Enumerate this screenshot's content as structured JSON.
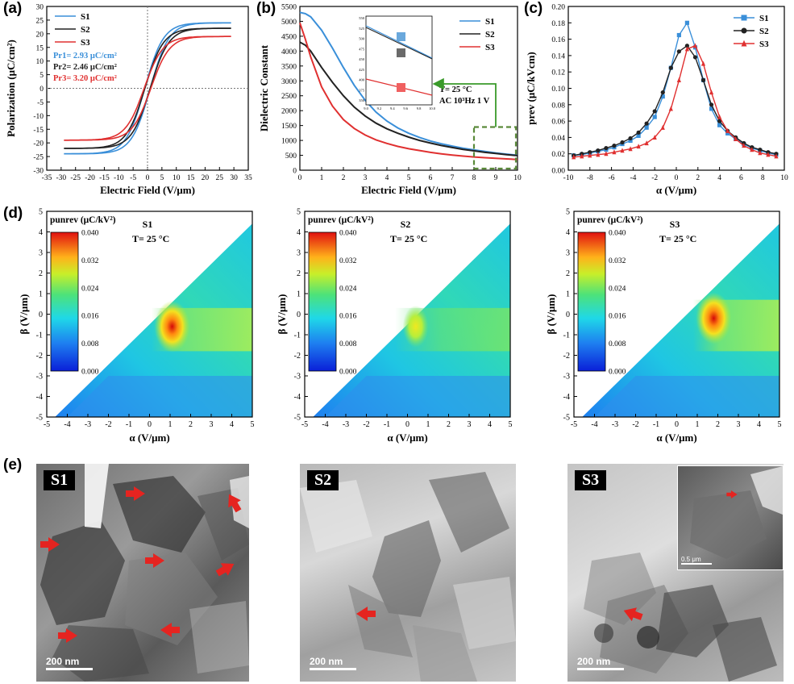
{
  "panel_labels": {
    "a": "(a)",
    "b": "(b)",
    "c": "(c)",
    "d": "(d)",
    "e": "(e)"
  },
  "colors": {
    "S1": "#3a8fd9",
    "S2": "#222222",
    "S3": "#e03030",
    "arrow": "#e52420",
    "inset_arrow": "#3a9a2a"
  },
  "chart_data": [
    {
      "id": "a",
      "type": "line",
      "title": "",
      "xlabel": "Electric Field (V/μm)",
      "ylabel": "Polarization (μC/cm²)",
      "xlim": [
        -35,
        35
      ],
      "ylim": [
        -30,
        30
      ],
      "xticks": [
        -35,
        -30,
        -25,
        -20,
        -15,
        -10,
        -5,
        0,
        5,
        10,
        15,
        20,
        25,
        30,
        35
      ],
      "yticks": [
        -30,
        -25,
        -20,
        -15,
        -10,
        -5,
        0,
        5,
        10,
        15,
        20,
        25,
        30
      ],
      "legend": [
        "S1",
        "S2",
        "S3"
      ],
      "annotations": [
        "Pr1= 2.93 μC/cm²",
        "Pr2= 2.46 μC/cm²",
        "Pr3= 3.20 μC/cm²"
      ],
      "series": [
        {
          "name": "S1",
          "Pmax": 24,
          "Pr": 2.93,
          "Emax": 29
        },
        {
          "name": "S2",
          "Pmax": 22,
          "Pr": 2.46,
          "Emax": 29
        },
        {
          "name": "S3",
          "Pmax": 19,
          "Pr": 3.2,
          "Emax": 29
        }
      ]
    },
    {
      "id": "b",
      "type": "line",
      "title": "",
      "xlabel": "Electric Field (V/μm)",
      "ylabel": "Dielectric Constant",
      "xlim": [
        0,
        10
      ],
      "ylim": [
        0,
        5500
      ],
      "xticks": [
        0,
        1,
        2,
        3,
        4,
        5,
        6,
        7,
        8,
        9,
        10
      ],
      "yticks": [
        0,
        500,
        1000,
        1500,
        2000,
        2500,
        3000,
        3500,
        4000,
        4500,
        5000,
        5500
      ],
      "legend": [
        "S1",
        "S2",
        "S3"
      ],
      "inset_text": [
        "T= 25 °C",
        "AC 10³Hz 1 V"
      ],
      "inset_xticks": [
        "9.0",
        "9.2",
        "9.4",
        "9.6",
        "9.8",
        "10.0"
      ],
      "inset_yticks": [
        "550",
        "525",
        "500",
        "475",
        "450",
        "425",
        "400",
        "375",
        "350"
      ],
      "x": [
        0,
        0.25,
        0.5,
        1,
        1.5,
        2,
        2.5,
        3,
        3.5,
        4,
        4.5,
        5,
        5.5,
        6,
        6.5,
        7,
        7.5,
        8,
        8.5,
        9,
        9.5,
        10
      ],
      "series": [
        {
          "name": "S1",
          "values": [
            5300,
            5260,
            5150,
            4700,
            4100,
            3450,
            2850,
            2350,
            1950,
            1650,
            1420,
            1240,
            1100,
            980,
            890,
            810,
            740,
            680,
            630,
            580,
            540,
            500
          ]
        },
        {
          "name": "S2",
          "values": [
            4300,
            4200,
            4000,
            3450,
            2950,
            2500,
            2120,
            1820,
            1580,
            1390,
            1240,
            1110,
            1000,
            910,
            830,
            760,
            700,
            650,
            600,
            560,
            520,
            490
          ]
        },
        {
          "name": "S3",
          "values": [
            4950,
            4400,
            3800,
            2800,
            2150,
            1700,
            1400,
            1180,
            1020,
            900,
            800,
            720,
            660,
            600,
            550,
            510,
            475,
            445,
            420,
            400,
            380,
            360
          ]
        }
      ]
    },
    {
      "id": "c",
      "type": "line",
      "title": "",
      "xlabel": "α (V/μm)",
      "ylabel": "prev (μC/kVcm)",
      "xlim": [
        -10,
        10
      ],
      "ylim": [
        0,
        0.2
      ],
      "xticks": [
        -10,
        -8,
        -6,
        -4,
        -2,
        0,
        2,
        4,
        6,
        8,
        10
      ],
      "yticks": [
        "0.00",
        "0.02",
        "0.04",
        "0.06",
        "0.08",
        "0.10",
        "0.12",
        "0.14",
        "0.16",
        "0.18",
        "0.20"
      ],
      "legend": [
        "S1",
        "S2",
        "S3"
      ],
      "x": [
        -9.5,
        -8.75,
        -8,
        -7.25,
        -6.5,
        -5.75,
        -5,
        -4.25,
        -3.5,
        -2.75,
        -2,
        -1.25,
        -0.5,
        0.25,
        1,
        1.75,
        2.5,
        3.25,
        4,
        4.75,
        5.5,
        6.25,
        7,
        7.75,
        8.5,
        9.25
      ],
      "series": [
        {
          "name": "S1",
          "values": [
            0.018,
            0.019,
            0.021,
            0.023,
            0.025,
            0.028,
            0.032,
            0.036,
            0.042,
            0.052,
            0.065,
            0.09,
            0.125,
            0.165,
            0.18,
            0.15,
            0.11,
            0.075,
            0.055,
            0.045,
            0.038,
            0.032,
            0.027,
            0.024,
            0.021,
            0.019
          ]
        },
        {
          "name": "S2",
          "values": [
            0.018,
            0.02,
            0.022,
            0.024,
            0.027,
            0.03,
            0.034,
            0.039,
            0.046,
            0.057,
            0.072,
            0.095,
            0.125,
            0.145,
            0.152,
            0.138,
            0.11,
            0.08,
            0.06,
            0.048,
            0.04,
            0.033,
            0.028,
            0.025,
            0.022,
            0.02
          ]
        },
        {
          "name": "S3",
          "values": [
            0.016,
            0.017,
            0.018,
            0.019,
            0.02,
            0.022,
            0.024,
            0.026,
            0.029,
            0.033,
            0.04,
            0.052,
            0.075,
            0.11,
            0.148,
            0.152,
            0.13,
            0.095,
            0.065,
            0.048,
            0.038,
            0.03,
            0.025,
            0.021,
            0.019,
            0.017
          ]
        }
      ]
    },
    {
      "id": "d1",
      "type": "heatmap",
      "title": "S1",
      "temperature": "T= 25 °C",
      "cbar_title": "punrev (μC/kV²)",
      "cbar_ticks": [
        "0.040",
        "0.032",
        "0.024",
        "0.016",
        "0.008",
        "0.000"
      ],
      "xlabel": "α (V/μm)",
      "ylabel": "β (V/μm)",
      "xlim": [
        -5,
        5
      ],
      "ylim": [
        -5,
        5
      ],
      "xticks": [
        -5,
        -4,
        -3,
        -2,
        -1,
        0,
        1,
        2,
        3,
        4,
        5
      ],
      "yticks": [
        5,
        4,
        3,
        2,
        1,
        0,
        -1,
        -2,
        -3,
        -4,
        -5
      ],
      "peak": {
        "alpha": 1.1,
        "beta": -0.6,
        "value": 0.038
      }
    },
    {
      "id": "d2",
      "type": "heatmap",
      "title": "S2",
      "temperature": "T= 25 °C",
      "cbar_title": "punrev (μC/kV²)",
      "cbar_ticks": [
        "0.040",
        "0.032",
        "0.024",
        "0.016",
        "0.008",
        "0.000"
      ],
      "xlabel": "α (V/μm)",
      "ylabel": "β (V/μm)",
      "xlim": [
        -5,
        5
      ],
      "ylim": [
        -5,
        5
      ],
      "xticks": [
        -5,
        -4,
        -3,
        -2,
        -1,
        0,
        1,
        2,
        3,
        4,
        5
      ],
      "yticks": [
        5,
        4,
        3,
        2,
        1,
        0,
        -1,
        -2,
        -3,
        -4,
        -5
      ],
      "peak": {
        "alpha": 0.4,
        "beta": -0.6,
        "value": 0.026
      }
    },
    {
      "id": "d3",
      "type": "heatmap",
      "title": "S3",
      "temperature": "T= 25 °C",
      "cbar_title": "punrev (μC/kV²)",
      "cbar_ticks": [
        "0.040",
        "0.032",
        "0.024",
        "0.016",
        "0.008",
        "0.000"
      ],
      "xlabel": "α (V/μm)",
      "ylabel": "β (V/μm)",
      "xlim": [
        -5,
        5
      ],
      "ylim": [
        -5,
        5
      ],
      "xticks": [
        -5,
        -4,
        -3,
        -2,
        -1,
        0,
        1,
        2,
        3,
        4,
        5
      ],
      "yticks": [
        5,
        4,
        3,
        2,
        1,
        0,
        -1,
        -2,
        -3,
        -4,
        -5
      ],
      "peak": {
        "alpha": 1.8,
        "beta": -0.2,
        "value": 0.04
      }
    }
  ],
  "tem": [
    {
      "label": "S1",
      "scale": "200 nm",
      "arrows": 7
    },
    {
      "label": "S2",
      "scale": "200 nm",
      "arrows": 1
    },
    {
      "label": "S3",
      "scale": "200 nm",
      "inset_scale": "0.5 μm",
      "arrows": 1
    }
  ]
}
